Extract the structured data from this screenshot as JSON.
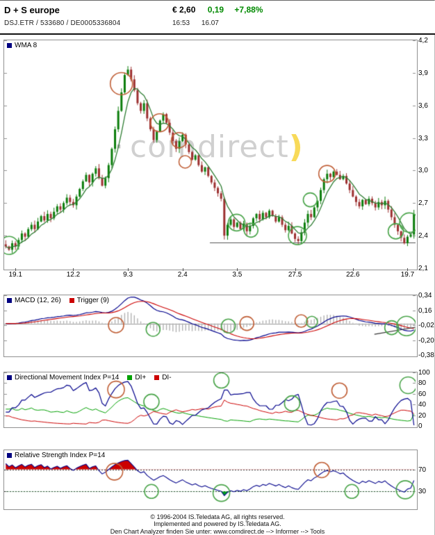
{
  "colors": {
    "pos": "#008a00",
    "up": "#0b7d0b",
    "down": "#9c2f2f",
    "wma": "#2e7d32",
    "macd": "#00008b",
    "trigger": "#cc0000",
    "hist": "#b0b0b0",
    "dip": "#00a000",
    "dim": "#cc0000",
    "rsi_ob_fill": "#cc0000",
    "rsi_os_fill": "#00a01e",
    "buy": "#4aa44a",
    "sell": "#c06038",
    "axis": "#909090",
    "support": "#555555"
  },
  "header": {
    "title": "D + S europe",
    "instrument_line": "DSJ.ETR  /  533680  /  DE0005336804",
    "price": "€ 2,60",
    "change_abs": "0,19",
    "change_pct": "+7,88%",
    "time": "16:53",
    "date": "16.07"
  },
  "watermark": {
    "dot": "·",
    "text": "comdirect",
    "paren": ")"
  },
  "footer": {
    "line1": "© 1996-2004 IS.Teledata AG, all rights reserved.",
    "line2": "Implemented and powered by IS.Teledata AG.",
    "line3": "Den Chart Analyzer finden Sie unter: www.comdirect.de --> Informer --> Tools"
  },
  "chart_data": [
    {
      "type": "candlestick",
      "name": "price",
      "legend": [
        {
          "label": "WMA 8",
          "color": "#000080"
        }
      ],
      "ylim": [
        2.1,
        4.2
      ],
      "y_ticks": [
        {
          "label": "4,2",
          "v": 4.2
        },
        {
          "label": "3,9",
          "v": 3.9
        },
        {
          "label": "3,6",
          "v": 3.6
        },
        {
          "label": "3,3",
          "v": 3.3
        },
        {
          "label": "3,0",
          "v": 3.0
        },
        {
          "label": "2,7",
          "v": 2.7
        },
        {
          "label": "2,4",
          "v": 2.4
        },
        {
          "label": "2,1",
          "v": 2.1
        }
      ],
      "x_ticks": [
        {
          "label": "19.1",
          "i": 3
        },
        {
          "label": "12.2",
          "i": 21
        },
        {
          "label": "9.3",
          "i": 38
        },
        {
          "label": "2.4",
          "i": 55
        },
        {
          "label": "3.5",
          "i": 72
        },
        {
          "label": "27.5",
          "i": 90
        },
        {
          "label": "22.6",
          "i": 108
        },
        {
          "label": "19.7",
          "i": 125
        }
      ],
      "wma_period": 8,
      "support_line": {
        "value": 2.34,
        "from_frac": 0.5
      },
      "close": [
        2.3,
        2.27,
        2.33,
        2.3,
        2.36,
        2.42,
        2.39,
        2.46,
        2.5,
        2.46,
        2.53,
        2.58,
        2.54,
        2.6,
        2.56,
        2.62,
        2.67,
        2.64,
        2.7,
        2.75,
        2.71,
        2.68,
        2.76,
        2.83,
        2.9,
        2.96,
        2.89,
        2.97,
        3.02,
        2.93,
        2.86,
        2.93,
        3.05,
        3.2,
        3.38,
        3.55,
        3.72,
        3.88,
        3.93,
        3.84,
        3.74,
        3.62,
        3.55,
        3.62,
        3.48,
        3.38,
        3.28,
        3.36,
        3.46,
        3.52,
        3.44,
        3.35,
        3.27,
        3.2,
        3.27,
        3.33,
        3.24,
        3.17,
        3.1,
        3.14,
        3.05,
        2.99,
        3.03,
        2.95,
        2.89,
        2.84,
        2.79,
        2.74,
        2.4,
        2.5,
        2.55,
        2.48,
        2.52,
        2.46,
        2.51,
        2.44,
        2.49,
        2.56,
        2.6,
        2.55,
        2.61,
        2.57,
        2.63,
        2.58,
        2.53,
        2.57,
        2.5,
        2.45,
        2.49,
        2.42,
        2.37,
        2.35,
        2.43,
        2.52,
        2.6,
        2.57,
        2.66,
        2.72,
        2.82,
        2.92,
        2.97,
        2.94,
        2.99,
        2.96,
        2.92,
        2.95,
        2.88,
        2.82,
        2.76,
        2.71,
        2.67,
        2.73,
        2.69,
        2.74,
        2.7,
        2.66,
        2.71,
        2.68,
        2.72,
        2.64,
        2.57,
        2.5,
        2.44,
        2.38,
        2.33,
        2.39,
        2.41,
        2.6
      ],
      "signals": [
        {
          "x": 0.012,
          "v": 2.31,
          "r": 13,
          "s": "buy"
        },
        {
          "x": 0.285,
          "v": 3.8,
          "r": 16,
          "s": "sell"
        },
        {
          "x": 0.378,
          "v": 3.44,
          "r": 13,
          "s": "sell"
        },
        {
          "x": 0.425,
          "v": 3.28,
          "r": 11,
          "s": "sell"
        },
        {
          "x": 0.44,
          "v": 3.08,
          "r": 9,
          "s": "sell"
        },
        {
          "x": 0.565,
          "v": 2.52,
          "r": 12,
          "s": "buy"
        },
        {
          "x": 0.6,
          "v": 2.45,
          "r": 10,
          "s": "buy"
        },
        {
          "x": 0.713,
          "v": 2.4,
          "r": 13,
          "s": "buy"
        },
        {
          "x": 0.744,
          "v": 2.73,
          "r": 10,
          "s": "buy"
        },
        {
          "x": 0.785,
          "v": 2.97,
          "r": 12,
          "s": "sell"
        },
        {
          "x": 0.952,
          "v": 2.44,
          "r": 11,
          "s": "buy"
        },
        {
          "x": 0.985,
          "v": 2.52,
          "r": 14,
          "s": "buy"
        }
      ]
    },
    {
      "type": "line",
      "name": "macd",
      "legend": [
        {
          "label": "MACD (12, 26)",
          "color": "#000080"
        },
        {
          "label": "Trigger (9)",
          "color": "#cc0000"
        }
      ],
      "params": {
        "fast": 12,
        "slow": 26,
        "signal": 9
      },
      "ylim": [
        -0.38,
        0.34
      ],
      "y_ticks": [
        {
          "label": "0,34",
          "v": 0.34
        },
        {
          "label": "0,16",
          "v": 0.16
        },
        {
          "label": "-0,02",
          "v": -0.02
        },
        {
          "label": "-0,20",
          "v": -0.2
        },
        {
          "label": "-0,38",
          "v": -0.38
        }
      ],
      "trend_line": {
        "x1": 0.9,
        "v1": -0.13,
        "x2": 1.0,
        "v2": -0.045,
        "color": "#333333"
      },
      "signals": [
        {
          "x": 0.272,
          "v": -0.02,
          "r": 11,
          "s": "sell"
        },
        {
          "x": 0.362,
          "v": -0.07,
          "r": 10,
          "s": "buy"
        },
        {
          "x": 0.545,
          "v": -0.03,
          "r": 10,
          "s": "buy"
        },
        {
          "x": 0.59,
          "v": 0.0,
          "r": 10,
          "s": "sell"
        },
        {
          "x": 0.722,
          "v": 0.03,
          "r": 9,
          "s": "sell"
        },
        {
          "x": 0.748,
          "v": 0.02,
          "r": 8,
          "s": "buy"
        },
        {
          "x": 0.942,
          "v": -0.05,
          "r": 10,
          "s": "buy"
        },
        {
          "x": 0.978,
          "v": -0.03,
          "r": 14,
          "s": "buy"
        }
      ]
    },
    {
      "type": "line",
      "name": "dmi",
      "legend": [
        {
          "label": "Directional Movement Index P=14",
          "color": "#000080"
        },
        {
          "label": "DI+",
          "color": "#00a000"
        },
        {
          "label": "DI-",
          "color": "#cc0000"
        }
      ],
      "period": 14,
      "ylim": [
        0,
        100
      ],
      "y_ticks": [
        {
          "label": "100",
          "v": 100
        },
        {
          "label": "80",
          "v": 80
        },
        {
          "label": "60",
          "v": 60
        },
        {
          "label": "40",
          "v": 40
        },
        {
          "label": "20",
          "v": 20
        },
        {
          "label": "0",
          "v": 0
        }
      ],
      "signals": [
        {
          "x": 0.272,
          "v": 68,
          "r": 12,
          "s": "sell"
        },
        {
          "x": 0.358,
          "v": 45,
          "r": 11,
          "s": "buy"
        },
        {
          "x": 0.528,
          "v": 85,
          "r": 11,
          "s": "buy"
        },
        {
          "x": 0.7,
          "v": 42,
          "r": 11,
          "s": "buy"
        },
        {
          "x": 0.815,
          "v": 66,
          "r": 11,
          "s": "sell"
        },
        {
          "x": 0.982,
          "v": 76,
          "r": 12,
          "s": "buy"
        }
      ]
    },
    {
      "type": "line",
      "name": "rsi",
      "legend": [
        {
          "label": "Relative Strength Index P=14",
          "color": "#000080"
        }
      ],
      "period": 14,
      "overbought": 70,
      "oversold": 30,
      "ylim": [
        0,
        105
      ],
      "y_ticks": [
        {
          "label": "70",
          "v": 70
        },
        {
          "label": "30",
          "v": 30
        }
      ],
      "signals": [
        {
          "x": 0.268,
          "v": 66,
          "r": 12,
          "s": "sell"
        },
        {
          "x": 0.358,
          "v": 30,
          "r": 10,
          "s": "buy"
        },
        {
          "x": 0.528,
          "v": 27,
          "r": 12,
          "s": "buy"
        },
        {
          "x": 0.772,
          "v": 69,
          "r": 11,
          "s": "sell"
        },
        {
          "x": 0.845,
          "v": 30,
          "r": 10,
          "s": "buy"
        },
        {
          "x": 0.975,
          "v": 33,
          "r": 13,
          "s": "buy"
        }
      ]
    }
  ]
}
